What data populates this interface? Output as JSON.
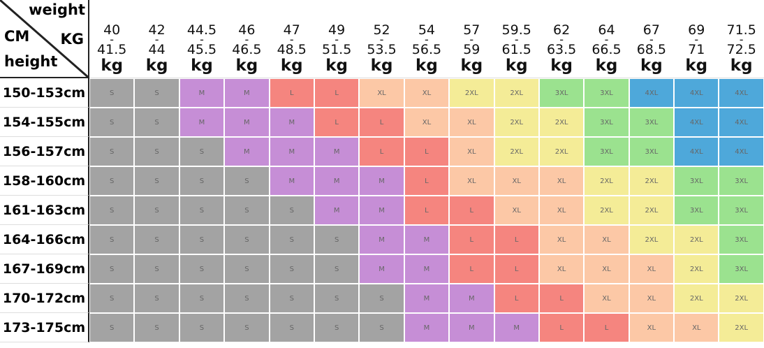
{
  "corner": {
    "weight": "weight",
    "kg": "KG",
    "cm": "CM",
    "height": "height"
  },
  "size_colors": {
    "S": "#a3a3a3",
    "M": "#c68ed6",
    "L": "#f5857f",
    "XL": "#fcc8a6",
    "2XL": "#f4ec97",
    "3XL": "#9be28f",
    "4XL": "#4ea8da"
  },
  "columns": [
    {
      "from": "40",
      "sep": "-",
      "to": "41.5",
      "unit": "kg"
    },
    {
      "from": "42",
      "sep": "-",
      "to": "44",
      "unit": "kg"
    },
    {
      "from": "44.5",
      "sep": "-",
      "to": "45.5",
      "unit": "kg"
    },
    {
      "from": "46",
      "sep": "-",
      "to": "46.5",
      "unit": "kg"
    },
    {
      "from": "47",
      "sep": "-",
      "to": "48.5",
      "unit": "kg"
    },
    {
      "from": "49",
      "sep": "-",
      "to": "51.5",
      "unit": "kg"
    },
    {
      "from": "52",
      "sep": "-",
      "to": "53.5",
      "unit": "kg"
    },
    {
      "from": "54",
      "sep": "-",
      "to": "56.5",
      "unit": "kg"
    },
    {
      "from": "57",
      "sep": "-",
      "to": "59",
      "unit": "kg"
    },
    {
      "from": "59.5",
      "sep": "-",
      "to": "61.5",
      "unit": "kg"
    },
    {
      "from": "62",
      "sep": "-",
      "to": "63.5",
      "unit": "kg"
    },
    {
      "from": "64",
      "sep": "-",
      "to": "66.5",
      "unit": "kg"
    },
    {
      "from": "67",
      "sep": "-",
      "to": "68.5",
      "unit": "kg"
    },
    {
      "from": "69",
      "sep": "-",
      "to": "71",
      "unit": "kg"
    },
    {
      "from": "71.5",
      "sep": "-",
      "to": "72.5",
      "unit": "kg"
    }
  ],
  "rows": [
    {
      "label": "150-153cm",
      "cells": [
        "S",
        "S",
        "M",
        "M",
        "L",
        "L",
        "XL",
        "XL",
        "2XL",
        "2XL",
        "3XL",
        "3XL",
        "4XL",
        "4XL",
        "4XL"
      ]
    },
    {
      "label": "154-155cm",
      "cells": [
        "S",
        "S",
        "M",
        "M",
        "M",
        "L",
        "L",
        "XL",
        "XL",
        "2XL",
        "2XL",
        "3XL",
        "3XL",
        "4XL",
        "4XL"
      ]
    },
    {
      "label": "156-157cm",
      "cells": [
        "S",
        "S",
        "S",
        "M",
        "M",
        "M",
        "L",
        "L",
        "XL",
        "2XL",
        "2XL",
        "3XL",
        "3XL",
        "4XL",
        "4XL"
      ]
    },
    {
      "label": "158-160cm",
      "cells": [
        "S",
        "S",
        "S",
        "S",
        "M",
        "M",
        "M",
        "L",
        "XL",
        "XL",
        "XL",
        "2XL",
        "2XL",
        "3XL",
        "3XL"
      ]
    },
    {
      "label": "161-163cm",
      "cells": [
        "S",
        "S",
        "S",
        "S",
        "S",
        "M",
        "M",
        "L",
        "L",
        "XL",
        "XL",
        "2XL",
        "2XL",
        "3XL",
        "3XL"
      ]
    },
    {
      "label": "164-166cm",
      "cells": [
        "S",
        "S",
        "S",
        "S",
        "S",
        "S",
        "M",
        "M",
        "L",
        "L",
        "XL",
        "XL",
        "2XL",
        "2XL",
        "3XL"
      ]
    },
    {
      "label": "167-169cm",
      "cells": [
        "S",
        "S",
        "S",
        "S",
        "S",
        "S",
        "M",
        "M",
        "L",
        "L",
        "XL",
        "XL",
        "XL",
        "2XL",
        "3XL"
      ]
    },
    {
      "label": "170-172cm",
      "cells": [
        "S",
        "S",
        "S",
        "S",
        "S",
        "S",
        "S",
        "M",
        "M",
        "L",
        "L",
        "XL",
        "XL",
        "2XL",
        "2XL"
      ]
    },
    {
      "label": "173-175cm",
      "cells": [
        "S",
        "S",
        "S",
        "S",
        "S",
        "S",
        "S",
        "M",
        "M",
        "M",
        "L",
        "L",
        "XL",
        "XL",
        "2XL"
      ]
    }
  ]
}
